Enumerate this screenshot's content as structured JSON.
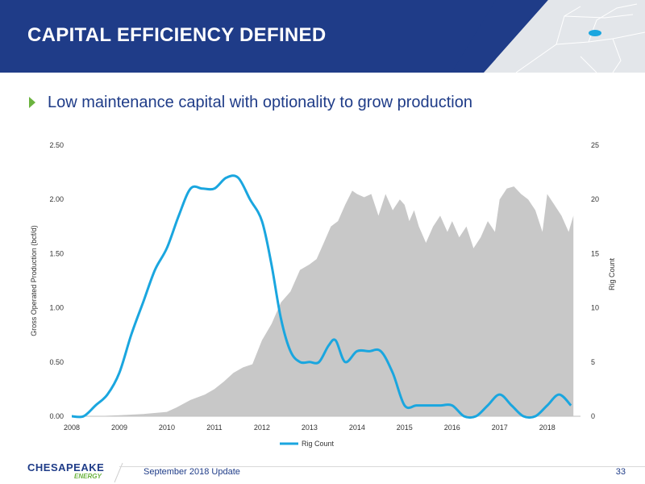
{
  "header": {
    "title": "CAPITAL EFFICIENCY DEFINED"
  },
  "bullet": {
    "text": "Low maintenance capital with optionality to grow production"
  },
  "footer": {
    "text": "September 2018 Update",
    "page": "33"
  },
  "logo": {
    "wordmark": "CHESAPEAKE",
    "sub": "ENERGY"
  },
  "colors": {
    "header_bg": "#1f3c88",
    "rig_line": "#1aa6df",
    "production_area": "#c8c8c8",
    "bullet_arrow": "#6bb33f",
    "text_blue": "#1f3c88"
  },
  "chart_data": {
    "type": "area",
    "x_ticks": [
      "2008",
      "2009",
      "2010",
      "2011",
      "2012",
      "2013",
      "2014",
      "2015",
      "2016",
      "2017",
      "2018"
    ],
    "y_left": {
      "label": "Gross Operated Production (bcf/d)",
      "range": [
        0,
        2.5
      ],
      "ticks": [
        "0.00",
        "0.50",
        "1.00",
        "1.50",
        "2.00",
        "2.50"
      ]
    },
    "y_right": {
      "label": "Rig Count",
      "range": [
        0,
        25
      ],
      "ticks": [
        "0",
        "5",
        "10",
        "15",
        "20",
        "25"
      ]
    },
    "legend": {
      "position": "bottom",
      "entries": [
        "Rig Count"
      ]
    },
    "series": [
      {
        "name": "Production",
        "axis": "left",
        "kind": "area",
        "points": [
          [
            2008.0,
            0.0
          ],
          [
            2008.5,
            0.0
          ],
          [
            2009.0,
            0.01
          ],
          [
            2009.5,
            0.02
          ],
          [
            2010.0,
            0.04
          ],
          [
            2010.2,
            0.08
          ],
          [
            2010.5,
            0.15
          ],
          [
            2010.8,
            0.2
          ],
          [
            2011.0,
            0.25
          ],
          [
            2011.2,
            0.32
          ],
          [
            2011.4,
            0.4
          ],
          [
            2011.6,
            0.45
          ],
          [
            2011.8,
            0.48
          ],
          [
            2012.0,
            0.7
          ],
          [
            2012.2,
            0.85
          ],
          [
            2012.4,
            1.05
          ],
          [
            2012.6,
            1.15
          ],
          [
            2012.8,
            1.35
          ],
          [
            2013.0,
            1.4
          ],
          [
            2013.15,
            1.45
          ],
          [
            2013.3,
            1.6
          ],
          [
            2013.45,
            1.75
          ],
          [
            2013.6,
            1.8
          ],
          [
            2013.75,
            1.95
          ],
          [
            2013.9,
            2.08
          ],
          [
            2014.0,
            2.05
          ],
          [
            2014.15,
            2.02
          ],
          [
            2014.3,
            2.05
          ],
          [
            2014.45,
            1.85
          ],
          [
            2014.6,
            2.05
          ],
          [
            2014.75,
            1.9
          ],
          [
            2014.9,
            2.0
          ],
          [
            2015.0,
            1.95
          ],
          [
            2015.1,
            1.8
          ],
          [
            2015.2,
            1.9
          ],
          [
            2015.3,
            1.75
          ],
          [
            2015.45,
            1.6
          ],
          [
            2015.6,
            1.75
          ],
          [
            2015.75,
            1.85
          ],
          [
            2015.9,
            1.7
          ],
          [
            2016.0,
            1.8
          ],
          [
            2016.15,
            1.65
          ],
          [
            2016.3,
            1.75
          ],
          [
            2016.45,
            1.55
          ],
          [
            2016.6,
            1.65
          ],
          [
            2016.75,
            1.8
          ],
          [
            2016.9,
            1.7
          ],
          [
            2017.0,
            2.0
          ],
          [
            2017.15,
            2.1
          ],
          [
            2017.3,
            2.12
          ],
          [
            2017.45,
            2.05
          ],
          [
            2017.6,
            2.0
          ],
          [
            2017.75,
            1.9
          ],
          [
            2017.9,
            1.7
          ],
          [
            2018.0,
            2.05
          ],
          [
            2018.15,
            1.95
          ],
          [
            2018.3,
            1.85
          ],
          [
            2018.45,
            1.7
          ],
          [
            2018.55,
            1.85
          ]
        ]
      },
      {
        "name": "Rig Count",
        "axis": "right",
        "kind": "line",
        "points": [
          [
            2008.0,
            0
          ],
          [
            2008.25,
            0
          ],
          [
            2008.5,
            1
          ],
          [
            2008.75,
            2
          ],
          [
            2009.0,
            4
          ],
          [
            2009.25,
            7.5
          ],
          [
            2009.5,
            10.5
          ],
          [
            2009.75,
            13.5
          ],
          [
            2010.0,
            15.5
          ],
          [
            2010.25,
            18.5
          ],
          [
            2010.5,
            21
          ],
          [
            2010.75,
            21
          ],
          [
            2011.0,
            21
          ],
          [
            2011.25,
            22
          ],
          [
            2011.5,
            22
          ],
          [
            2011.75,
            20
          ],
          [
            2012.0,
            18
          ],
          [
            2012.2,
            14
          ],
          [
            2012.4,
            9
          ],
          [
            2012.6,
            6
          ],
          [
            2012.8,
            5
          ],
          [
            2013.0,
            5
          ],
          [
            2013.2,
            5
          ],
          [
            2013.4,
            6.5
          ],
          [
            2013.55,
            7
          ],
          [
            2013.75,
            5
          ],
          [
            2014.0,
            6
          ],
          [
            2014.25,
            6
          ],
          [
            2014.5,
            6
          ],
          [
            2014.75,
            4
          ],
          [
            2015.0,
            1
          ],
          [
            2015.25,
            1
          ],
          [
            2015.5,
            1
          ],
          [
            2015.75,
            1
          ],
          [
            2016.0,
            1
          ],
          [
            2016.25,
            0
          ],
          [
            2016.5,
            0
          ],
          [
            2016.75,
            1
          ],
          [
            2017.0,
            2
          ],
          [
            2017.25,
            1
          ],
          [
            2017.5,
            0
          ],
          [
            2017.75,
            0
          ],
          [
            2018.0,
            1
          ],
          [
            2018.25,
            2
          ],
          [
            2018.5,
            1
          ]
        ]
      }
    ]
  }
}
